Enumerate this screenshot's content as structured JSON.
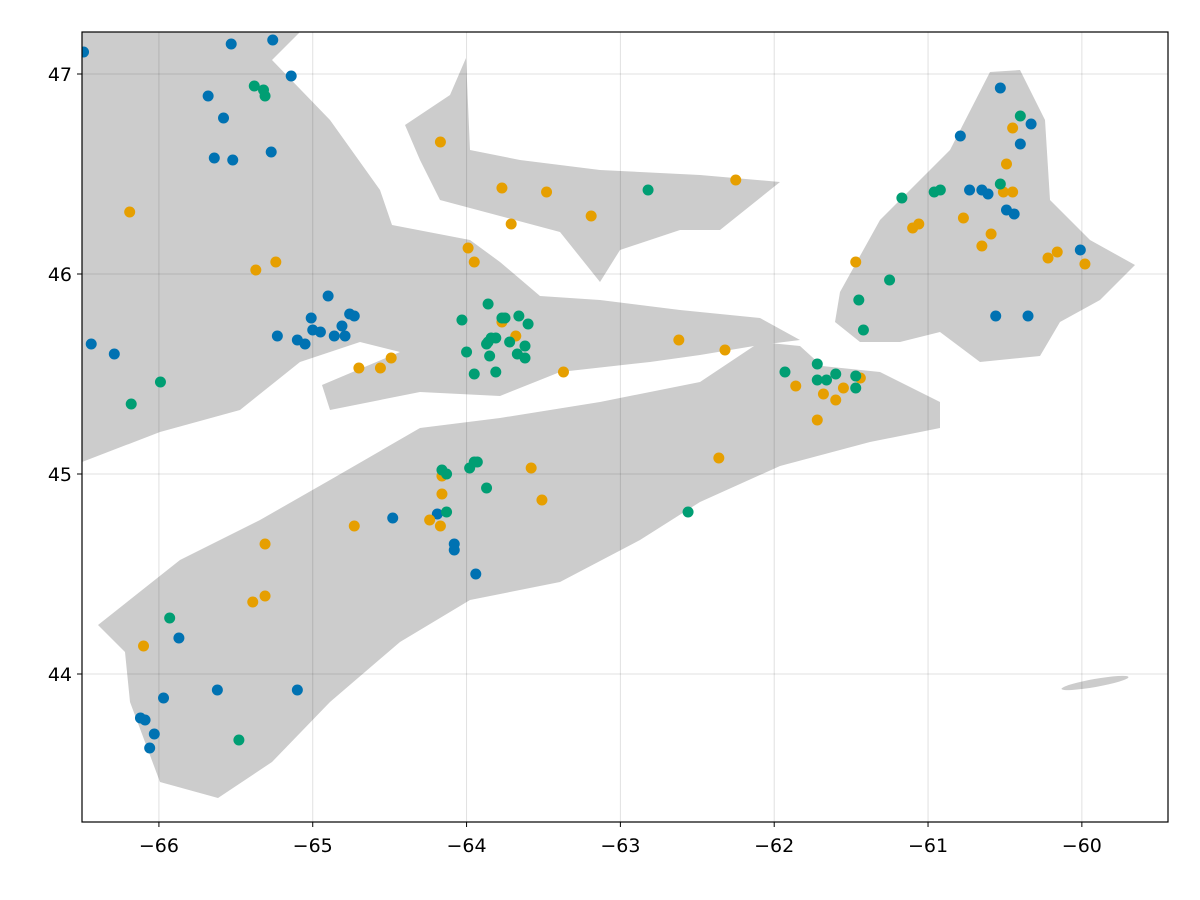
{
  "chart_data": {
    "type": "scatter",
    "title": "",
    "xlabel": "",
    "ylabel": "",
    "xlim": [
      -66.5,
      -59.44
    ],
    "ylim": [
      43.26,
      47.21
    ],
    "grid": true,
    "xticks": [
      -66,
      -65,
      -64,
      -63,
      -62,
      -61,
      -60
    ],
    "xtick_labels": [
      "−66",
      "−65",
      "−64",
      "−63",
      "−62",
      "−61",
      "−60"
    ],
    "yticks": [
      44,
      45,
      46,
      47
    ],
    "ytick_labels": [
      "44",
      "45",
      "46",
      "47"
    ],
    "background_land_color": "#cccccc",
    "series": [
      {
        "name": "blue",
        "color": "#0072b2",
        "points": [
          [
            -66.49,
            47.11
          ],
          [
            -65.53,
            47.15
          ],
          [
            -65.26,
            47.17
          ],
          [
            -65.14,
            46.99
          ],
          [
            -65.68,
            46.89
          ],
          [
            -65.58,
            46.78
          ],
          [
            -65.64,
            46.58
          ],
          [
            -65.52,
            46.57
          ],
          [
            -65.27,
            46.61
          ],
          [
            -66.44,
            45.65
          ],
          [
            -66.29,
            45.6
          ],
          [
            -65.23,
            45.69
          ],
          [
            -64.9,
            45.89
          ],
          [
            -65.01,
            45.78
          ],
          [
            -65.0,
            45.72
          ],
          [
            -64.95,
            45.71
          ],
          [
            -65.1,
            45.67
          ],
          [
            -65.05,
            45.65
          ],
          [
            -64.81,
            45.74
          ],
          [
            -64.86,
            45.69
          ],
          [
            -64.79,
            45.69
          ],
          [
            -64.76,
            45.8
          ],
          [
            -64.73,
            45.79
          ],
          [
            -64.48,
            44.78
          ],
          [
            -64.19,
            44.8
          ],
          [
            -64.08,
            44.65
          ],
          [
            -64.08,
            44.62
          ],
          [
            -63.94,
            44.5
          ],
          [
            -65.87,
            44.18
          ],
          [
            -65.97,
            43.88
          ],
          [
            -65.62,
            43.92
          ],
          [
            -65.1,
            43.92
          ],
          [
            -66.12,
            43.78
          ],
          [
            -66.09,
            43.77
          ],
          [
            -66.03,
            43.7
          ],
          [
            -66.06,
            43.63
          ],
          [
            -60.53,
            46.93
          ],
          [
            -60.33,
            46.75
          ],
          [
            -60.4,
            46.65
          ],
          [
            -60.79,
            46.69
          ],
          [
            -60.73,
            46.42
          ],
          [
            -60.65,
            46.42
          ],
          [
            -60.61,
            46.4
          ],
          [
            -60.49,
            46.32
          ],
          [
            -60.44,
            46.3
          ],
          [
            -60.01,
            46.12
          ],
          [
            -60.56,
            45.79
          ],
          [
            -60.35,
            45.79
          ]
        ]
      },
      {
        "name": "orange",
        "color": "#e69f00",
        "points": [
          [
            -64.17,
            46.66
          ],
          [
            -63.77,
            46.43
          ],
          [
            -63.48,
            46.41
          ],
          [
            -63.71,
            46.25
          ],
          [
            -63.19,
            46.29
          ],
          [
            -62.25,
            46.47
          ],
          [
            -66.19,
            46.31
          ],
          [
            -65.37,
            46.02
          ],
          [
            -65.24,
            46.06
          ],
          [
            -63.99,
            46.13
          ],
          [
            -63.95,
            46.06
          ],
          [
            -64.7,
            45.53
          ],
          [
            -64.56,
            45.53
          ],
          [
            -64.49,
            45.58
          ],
          [
            -63.77,
            45.76
          ],
          [
            -63.68,
            45.69
          ],
          [
            -63.37,
            45.51
          ],
          [
            -62.62,
            45.67
          ],
          [
            -62.32,
            45.62
          ],
          [
            -63.58,
            45.03
          ],
          [
            -63.51,
            44.87
          ],
          [
            -64.73,
            44.74
          ],
          [
            -65.31,
            44.65
          ],
          [
            -65.39,
            44.36
          ],
          [
            -65.31,
            44.39
          ],
          [
            -66.1,
            44.14
          ],
          [
            -64.24,
            44.77
          ],
          [
            -64.17,
            44.74
          ],
          [
            -64.16,
            44.9
          ],
          [
            -64.16,
            44.99
          ],
          [
            -62.36,
            45.08
          ],
          [
            -61.86,
            45.44
          ],
          [
            -61.68,
            45.4
          ],
          [
            -61.6,
            45.37
          ],
          [
            -61.55,
            45.43
          ],
          [
            -61.44,
            45.48
          ],
          [
            -61.72,
            45.27
          ],
          [
            -61.47,
            46.06
          ],
          [
            -61.1,
            46.23
          ],
          [
            -61.06,
            46.25
          ],
          [
            -60.77,
            46.28
          ],
          [
            -60.65,
            46.14
          ],
          [
            -60.59,
            46.2
          ],
          [
            -60.49,
            46.55
          ],
          [
            -60.45,
            46.41
          ],
          [
            -60.51,
            46.41
          ],
          [
            -60.45,
            46.73
          ],
          [
            -60.22,
            46.08
          ],
          [
            -60.16,
            46.11
          ],
          [
            -59.98,
            46.05
          ]
        ]
      },
      {
        "name": "green",
        "color": "#009e73",
        "points": [
          [
            -65.38,
            46.94
          ],
          [
            -65.32,
            46.92
          ],
          [
            -65.31,
            46.89
          ],
          [
            -65.99,
            45.46
          ],
          [
            -66.18,
            45.35
          ],
          [
            -65.48,
            43.67
          ],
          [
            -65.93,
            44.28
          ],
          [
            -62.82,
            46.42
          ],
          [
            -64.03,
            45.77
          ],
          [
            -63.86,
            45.85
          ],
          [
            -63.77,
            45.78
          ],
          [
            -63.75,
            45.78
          ],
          [
            -64.0,
            45.61
          ],
          [
            -63.95,
            45.5
          ],
          [
            -63.81,
            45.51
          ],
          [
            -63.87,
            45.65
          ],
          [
            -63.85,
            45.59
          ],
          [
            -63.84,
            45.68
          ],
          [
            -63.66,
            45.79
          ],
          [
            -63.6,
            45.75
          ],
          [
            -63.86,
            45.66
          ],
          [
            -63.81,
            45.68
          ],
          [
            -63.72,
            45.66
          ],
          [
            -63.67,
            45.6
          ],
          [
            -63.62,
            45.64
          ],
          [
            -63.62,
            45.58
          ],
          [
            -64.16,
            45.02
          ],
          [
            -64.13,
            45.0
          ],
          [
            -63.98,
            45.03
          ],
          [
            -63.95,
            45.06
          ],
          [
            -63.93,
            45.06
          ],
          [
            -63.87,
            44.93
          ],
          [
            -64.13,
            44.81
          ],
          [
            -62.56,
            44.81
          ],
          [
            -61.93,
            45.51
          ],
          [
            -61.72,
            45.47
          ],
          [
            -61.72,
            45.55
          ],
          [
            -61.66,
            45.47
          ],
          [
            -61.6,
            45.5
          ],
          [
            -61.47,
            45.49
          ],
          [
            -61.47,
            45.43
          ],
          [
            -61.45,
            45.87
          ],
          [
            -61.42,
            45.72
          ],
          [
            -61.25,
            45.97
          ],
          [
            -61.17,
            46.38
          ],
          [
            -60.96,
            46.41
          ],
          [
            -60.92,
            46.42
          ],
          [
            -60.53,
            46.45
          ],
          [
            -60.4,
            46.79
          ]
        ]
      }
    ]
  }
}
